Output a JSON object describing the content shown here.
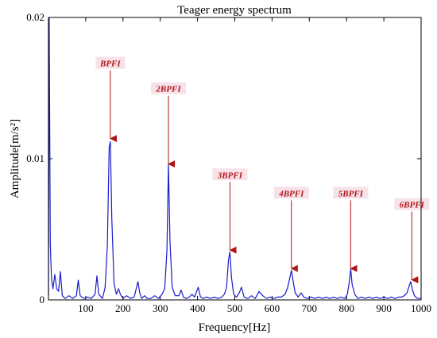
{
  "chart_data": {
    "type": "line",
    "title": "Teager energy spectrum",
    "xlabel": "Frequency[Hz]",
    "ylabel": "Amplitude[m/s²]",
    "xlim": [
      0,
      1000
    ],
    "ylim": [
      0,
      0.02
    ],
    "xticks": [
      100,
      200,
      300,
      400,
      500,
      600,
      700,
      800,
      900,
      1000
    ],
    "xtick_labels": [
      "100",
      "200",
      "300",
      "400",
      "500",
      "600",
      "700",
      "800",
      "900",
      "1000"
    ],
    "yticks": [
      0,
      0.01,
      0.02
    ],
    "ytick_labels": [
      "0",
      "0.01",
      "0.02"
    ],
    "grid": false,
    "line_color": "#1a1acc",
    "arrow_color": "#b01515",
    "series": [
      {
        "x": [
          0,
          2,
          5,
          8,
          12,
          17,
          22,
          27,
          32,
          37,
          45,
          55,
          65,
          75,
          80,
          85,
          95,
          105,
          115,
          125,
          130,
          135,
          145,
          152,
          158,
          163,
          166,
          170,
          176,
          182,
          188,
          193,
          200,
          210,
          220,
          230,
          240,
          245,
          250,
          258,
          265,
          275,
          285,
          295,
          305,
          312,
          318,
          322,
          326,
          332,
          340,
          350,
          356,
          362,
          370,
          378,
          385,
          392,
          402,
          408,
          415,
          425,
          435,
          445,
          455,
          465,
          472,
          478,
          483,
          487,
          491,
          497,
          505,
          512,
          518,
          525,
          535,
          545,
          555,
          565,
          575,
          585,
          595,
          605,
          615,
          625,
          635,
          642,
          648,
          652,
          656,
          662,
          670,
          678,
          685,
          695,
          705,
          715,
          725,
          735,
          745,
          755,
          765,
          775,
          785,
          795,
          802,
          807,
          811,
          815,
          822,
          830,
          840,
          850,
          860,
          870,
          880,
          890,
          900,
          910,
          920,
          930,
          940,
          948,
          955,
          962,
          968,
          972,
          976,
          982,
          990,
          1000
        ],
        "y": [
          0.0003,
          0.02,
          0.004,
          0.0015,
          0.0008,
          0.0018,
          0.0008,
          0.0006,
          0.002,
          0.0003,
          0.0001,
          0.0003,
          0.0001,
          0.0003,
          0.0014,
          0.0003,
          0.0001,
          0.0002,
          0.0001,
          0.0004,
          0.0017,
          0.0004,
          0.0001,
          0.0009,
          0.0038,
          0.0108,
          0.0112,
          0.0058,
          0.0012,
          0.0004,
          0.0008,
          0.0004,
          0.0001,
          0.0003,
          0.0001,
          0.0002,
          0.0013,
          0.0005,
          0.0001,
          0.0003,
          0.0001,
          0.0001,
          0.0003,
          0.0001,
          0.0004,
          0.0008,
          0.0035,
          0.0096,
          0.0042,
          0.0009,
          0.0003,
          0.0003,
          0.0007,
          0.0002,
          0.0001,
          0.0002,
          0.0004,
          0.0002,
          0.0009,
          0.0002,
          0.0001,
          0.0002,
          0.0001,
          0.0002,
          0.0001,
          0.0002,
          0.0004,
          0.0009,
          0.0028,
          0.0034,
          0.0016,
          0.0004,
          0.0002,
          0.0005,
          0.0009,
          0.0002,
          0.0001,
          0.0003,
          0.0001,
          0.0006,
          0.0003,
          0.0001,
          0.0002,
          0.0001,
          0.0002,
          0.0002,
          0.0004,
          0.0009,
          0.0016,
          0.0021,
          0.0014,
          0.0005,
          0.0002,
          0.0005,
          0.0002,
          0.0001,
          0.0002,
          0.0001,
          0.0002,
          0.0001,
          0.0002,
          0.0001,
          0.0002,
          0.0001,
          0.0002,
          0.0001,
          0.0004,
          0.0012,
          0.0022,
          0.0011,
          0.0004,
          0.0001,
          0.0002,
          0.0001,
          0.0002,
          0.0001,
          0.0002,
          0.0001,
          0.0002,
          0.0001,
          0.0002,
          0.0001,
          0.0002,
          0.0002,
          0.0003,
          0.0005,
          0.001,
          0.0013,
          0.0008,
          0.0003,
          0.0001,
          0.0001
        ]
      }
    ],
    "annotations": [
      {
        "text": "BPFI",
        "x": 166,
        "y": 0.0112
      },
      {
        "text": "2BPFI",
        "x": 322,
        "y": 0.0094
      },
      {
        "text": "3BPFI",
        "x": 487,
        "y": 0.0033
      },
      {
        "text": "4BPFI",
        "x": 652,
        "y": 0.002
      },
      {
        "text": "5BPFI",
        "x": 811,
        "y": 0.002
      },
      {
        "text": "6BPFI",
        "x": 975,
        "y": 0.0012
      }
    ]
  }
}
